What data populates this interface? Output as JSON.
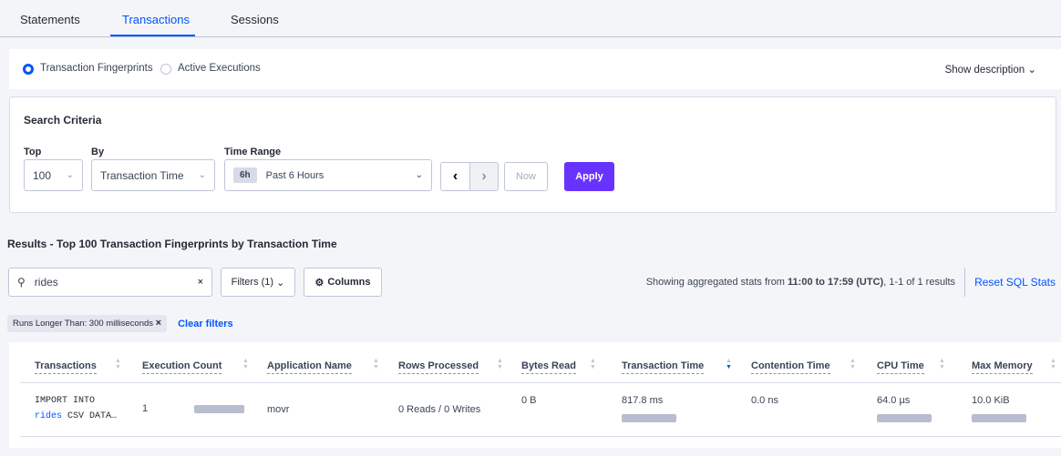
{
  "tabs": [
    {
      "label": "Statements"
    },
    {
      "label": "Transactions",
      "active": true
    },
    {
      "label": "Sessions"
    }
  ],
  "view_toggle": {
    "options": [
      "Transaction Fingerprints",
      "Active Executions"
    ],
    "selected": "Transaction Fingerprints",
    "show_description": "Show description"
  },
  "search_criteria": {
    "title": "Search Criteria",
    "top_label": "Top",
    "top_value": "100",
    "by_label": "By",
    "by_value": "Transaction Time",
    "time_range_label": "Time Range",
    "time_badge": "6h",
    "time_value": "Past 6 Hours",
    "now_label": "Now",
    "apply_label": "Apply"
  },
  "results": {
    "title": "Results - Top 100 Transaction Fingerprints by Transaction Time",
    "search_value": "rides",
    "filters_label": "Filters (1)",
    "columns_label": "Columns",
    "stats_prefix": "Showing aggregated stats from ",
    "stats_range": "11:00 to 17:59 (UTC)",
    "stats_suffix": ", 1-1 of 1 results",
    "reset_label": "Reset SQL Stats",
    "filter_chip": "Runs Longer Than: 300 milliseconds",
    "clear_filters": "Clear filters"
  },
  "table": {
    "columns": [
      "Transactions",
      "Execution Count",
      "Application Name",
      "Rows Processed",
      "Bytes Read",
      "Transaction Time",
      "Contention Time",
      "CPU Time",
      "Max Memory"
    ],
    "sorted_column": "Transaction Time",
    "sort_direction": "descending",
    "rows": [
      {
        "txn_line1": "IMPORT INTO",
        "txn_highlight": "rides",
        "txn_rest": " CSV DATA…",
        "execution_count": "1",
        "application": "movr",
        "rows_processed": "0 Reads / 0 Writes",
        "bytes_read": "0 B",
        "transaction_time": "817.8 ms",
        "contention_time": "0.0 ns",
        "cpu_time": "64.0 µs",
        "max_memory": "10.0 KiB"
      }
    ]
  },
  "colors": {
    "accent": "#0055ff",
    "apply": "#6933ff",
    "bar": "#b8bdd0"
  }
}
